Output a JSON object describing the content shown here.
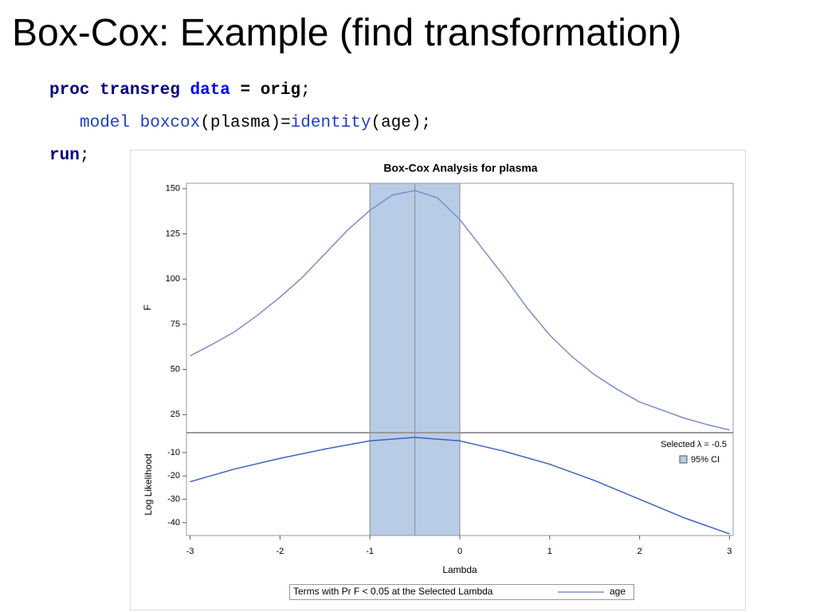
{
  "slide_title": "Box-Cox: Example (find transformation)",
  "code": {
    "lines": [
      [
        "proc",
        "transreg",
        "data",
        "= orig",
        ";"
      ],
      [
        "model",
        "boxcox",
        "(plasma)=",
        "identity",
        "(age);"
      ],
      [
        "run",
        ";"
      ]
    ]
  },
  "chart_data": [
    {
      "type": "line",
      "title": "Box-Cox Analysis for plasma",
      "ylabel": "F",
      "x": [
        -3,
        -2.75,
        -2.5,
        -2.25,
        -2,
        -1.75,
        -1.5,
        -1.25,
        -1,
        -0.75,
        -0.5,
        -0.25,
        0,
        0.25,
        0.5,
        0.75,
        1,
        1.25,
        1.5,
        1.75,
        2,
        2.25,
        2.5,
        2.75,
        3
      ],
      "series": [
        {
          "name": "age",
          "color": "#7b8dc8",
          "values": [
            57.5,
            64,
            71,
            80,
            90,
            101,
            114,
            127,
            138,
            146.5,
            149,
            145,
            133,
            117,
            101,
            84,
            69,
            57,
            47,
            39,
            32,
            27.5,
            23,
            19.5,
            16.5
          ]
        }
      ],
      "legend_title": "Terms with Pr F < 0.05 at the Selected Lambda",
      "xlim": [
        -3.04,
        3.04
      ],
      "ylim": [
        15,
        153
      ],
      "yticks": [
        25,
        50,
        75,
        100,
        125,
        150
      ]
    },
    {
      "type": "line",
      "ylabel": "Log Likelihood",
      "xlabel": "Lambda",
      "x": [
        -3,
        -2.5,
        -2,
        -1.5,
        -1,
        -0.5,
        0,
        0.5,
        1,
        1.5,
        2,
        2.5,
        3
      ],
      "values": [
        -22.5,
        -17,
        -12.5,
        -8.5,
        -5,
        -3.5,
        -5,
        -9.5,
        -15,
        -22,
        -30,
        -38,
        -44.8
      ],
      "color": "#3c64c0",
      "xlim": [
        -3.04,
        3.04
      ],
      "xticks": [
        -3,
        -2,
        -1,
        0,
        1,
        2,
        3
      ],
      "ylim": [
        -45.5,
        -1.5
      ],
      "yticks": [
        -10,
        -20,
        -30,
        -40
      ],
      "ci": [
        -1,
        0
      ],
      "ci_color": "#b8cce6",
      "selected": -0.5,
      "legend": {
        "selected_label": "Selected λ = -0.5",
        "ci_label": "95% CI"
      },
      "legend_position": "upper right"
    }
  ]
}
